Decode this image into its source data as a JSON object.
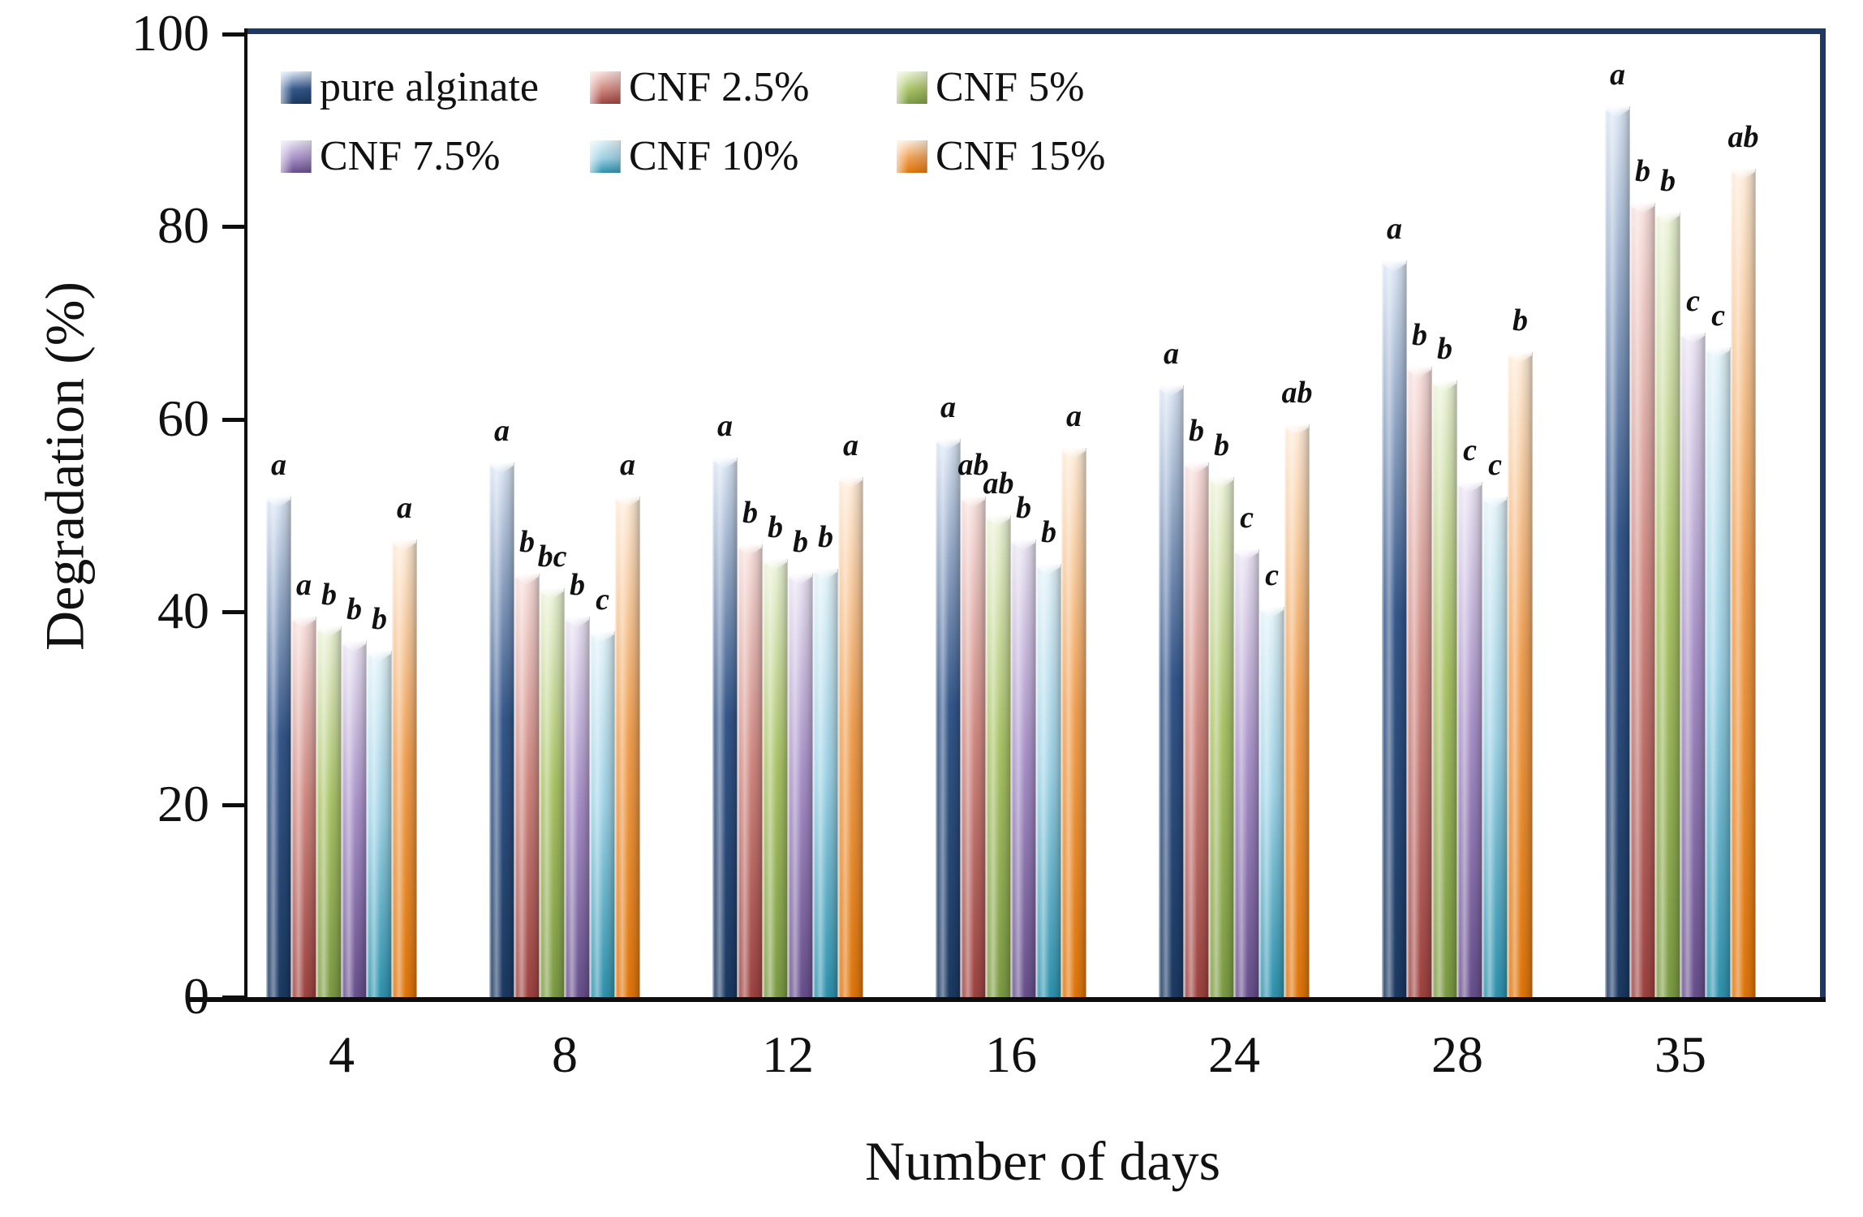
{
  "chart_data": {
    "type": "bar",
    "title": "",
    "xlabel": "Number of days",
    "ylabel": "Degradation (%)",
    "ylim": [
      0,
      100
    ],
    "yticks": [
      "0",
      "20",
      "40",
      "60",
      "80",
      "100"
    ],
    "grid": "off",
    "legend_position": "top-left inside, 2 rows x 3 columns",
    "frame_color": "#1f3864",
    "categories": [
      "4",
      "8",
      "12",
      "16",
      "24",
      "28",
      "35"
    ],
    "series": [
      {
        "name": "pure alginate",
        "color_dark": "#1b3a63",
        "color_mid": "#35588c",
        "color_tint": "#dce7f5",
        "values": [
          52,
          55.5,
          56,
          58,
          63.5,
          76.5,
          92.5
        ],
        "sig_letters": [
          "a",
          "a",
          "a",
          "a",
          "a",
          "a",
          "a"
        ]
      },
      {
        "name": "CNF 2.5%",
        "color_dark": "#9e4340",
        "color_mid": "#d18a82",
        "color_tint": "#f7e0dd",
        "values": [
          39.5,
          44,
          47,
          52,
          55.5,
          65.5,
          82.5
        ],
        "sig_letters": [
          "a",
          "b",
          "b",
          "ab",
          "b",
          "b",
          "b"
        ]
      },
      {
        "name": "CNF 5%",
        "color_dark": "#7d9c44",
        "color_mid": "#abc468",
        "color_tint": "#ebf3d8",
        "values": [
          38.5,
          42.5,
          45.5,
          50,
          54,
          64,
          81.5
        ],
        "sig_letters": [
          "b",
          "bc",
          "b",
          "ab",
          "b",
          "b",
          "b"
        ]
      },
      {
        "name": "CNF 7.5%",
        "color_dark": "#68508d",
        "color_mid": "#a992c9",
        "color_tint": "#eae4f3",
        "values": [
          37,
          39.5,
          44,
          47.5,
          46.5,
          53.5,
          69
        ],
        "sig_letters": [
          "b",
          "b",
          "b",
          "b",
          "c",
          "c",
          "c"
        ]
      },
      {
        "name": "CNF 10%",
        "color_dark": "#2f93ae",
        "color_mid": "#9fd3e6",
        "color_tint": "#e2f2f8",
        "values": [
          36,
          38,
          44.5,
          45,
          40.5,
          52,
          67.5
        ],
        "sig_letters": [
          "b",
          "c",
          "b",
          "b",
          "c",
          "c",
          "c"
        ]
      },
      {
        "name": "CNF 15%",
        "color_dark": "#e0760b",
        "color_mid": "#f0a053",
        "color_tint": "#fdebd8",
        "values": [
          47.5,
          52,
          54,
          57,
          59.5,
          67,
          86
        ],
        "sig_letters": [
          "a",
          "a",
          "a",
          "a",
          "ab",
          "b",
          "ab"
        ]
      }
    ]
  }
}
